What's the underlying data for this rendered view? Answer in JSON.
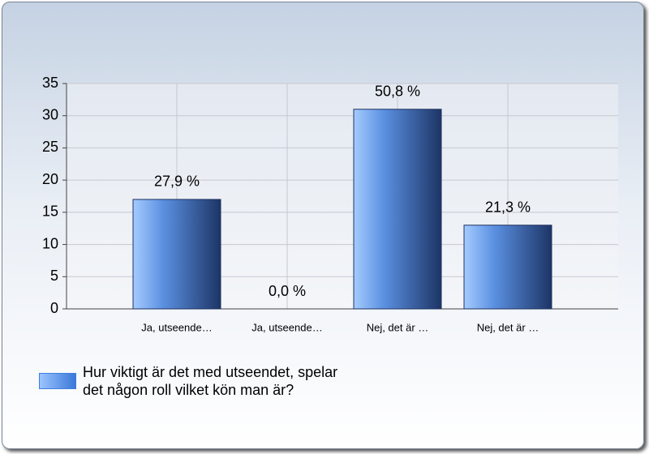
{
  "chart_data": {
    "type": "bar",
    "categories": [
      "Ja, utseende…",
      "Ja, utseende…",
      "Nej, det är …",
      "Nej, det är …"
    ],
    "series": [
      {
        "name": "Hur viktigt är det med utseendet, spelar det någon roll vilket kön man är?",
        "color": "#3f7fe0",
        "values": [
          17,
          0,
          31,
          13
        ],
        "value_labels": [
          "27,9 %",
          "0,0 %",
          "50,8 %",
          "21,3 %"
        ]
      }
    ],
    "ylim": [
      0,
      35
    ],
    "yticks": [
      0,
      5,
      10,
      15,
      20,
      25,
      30,
      35
    ],
    "grid": true,
    "legend": "bottom-left"
  }
}
